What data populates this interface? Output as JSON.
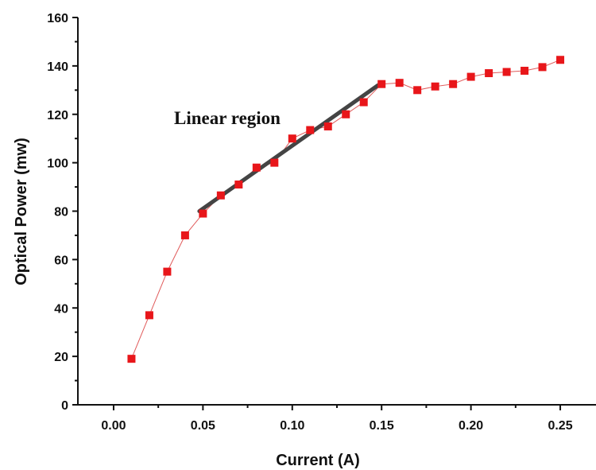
{
  "chart_data": {
    "type": "scatter",
    "xlabel": "Current (A)",
    "ylabel": "Optical Power (mw)",
    "xlim": [
      -0.02,
      0.27
    ],
    "ylim": [
      0,
      160
    ],
    "x_ticks": [
      "0.00",
      "0.05",
      "0.10",
      "0.15",
      "0.20",
      "0.25"
    ],
    "y_ticks": [
      "0",
      "20",
      "40",
      "60",
      "80",
      "100",
      "120",
      "140",
      "160"
    ],
    "grid": false,
    "colors": {
      "marker": "#e8161a",
      "connector": "#e05a5a",
      "fit_line": "#444444",
      "axis": "#111111"
    },
    "series": [
      {
        "marker": "square",
        "x": [
          0.01,
          0.02,
          0.03,
          0.04,
          0.05,
          0.06,
          0.07,
          0.08,
          0.09,
          0.1,
          0.11,
          0.12,
          0.13,
          0.14,
          0.15,
          0.16,
          0.17,
          0.18,
          0.19,
          0.2,
          0.21,
          0.22,
          0.23,
          0.24,
          0.25
        ],
        "y": [
          19,
          37,
          55,
          70,
          79,
          86.5,
          91,
          98,
          100,
          110,
          113.5,
          115,
          120,
          125,
          132.5,
          133,
          130,
          131.5,
          132.5,
          135.5,
          137,
          137.5,
          138,
          139.5,
          142.5
        ]
      }
    ],
    "fit_line": {
      "x": [
        0.048,
        0.148
      ],
      "y": [
        80,
        132
      ]
    },
    "annotations": [
      {
        "text": "Linear region"
      }
    ]
  }
}
